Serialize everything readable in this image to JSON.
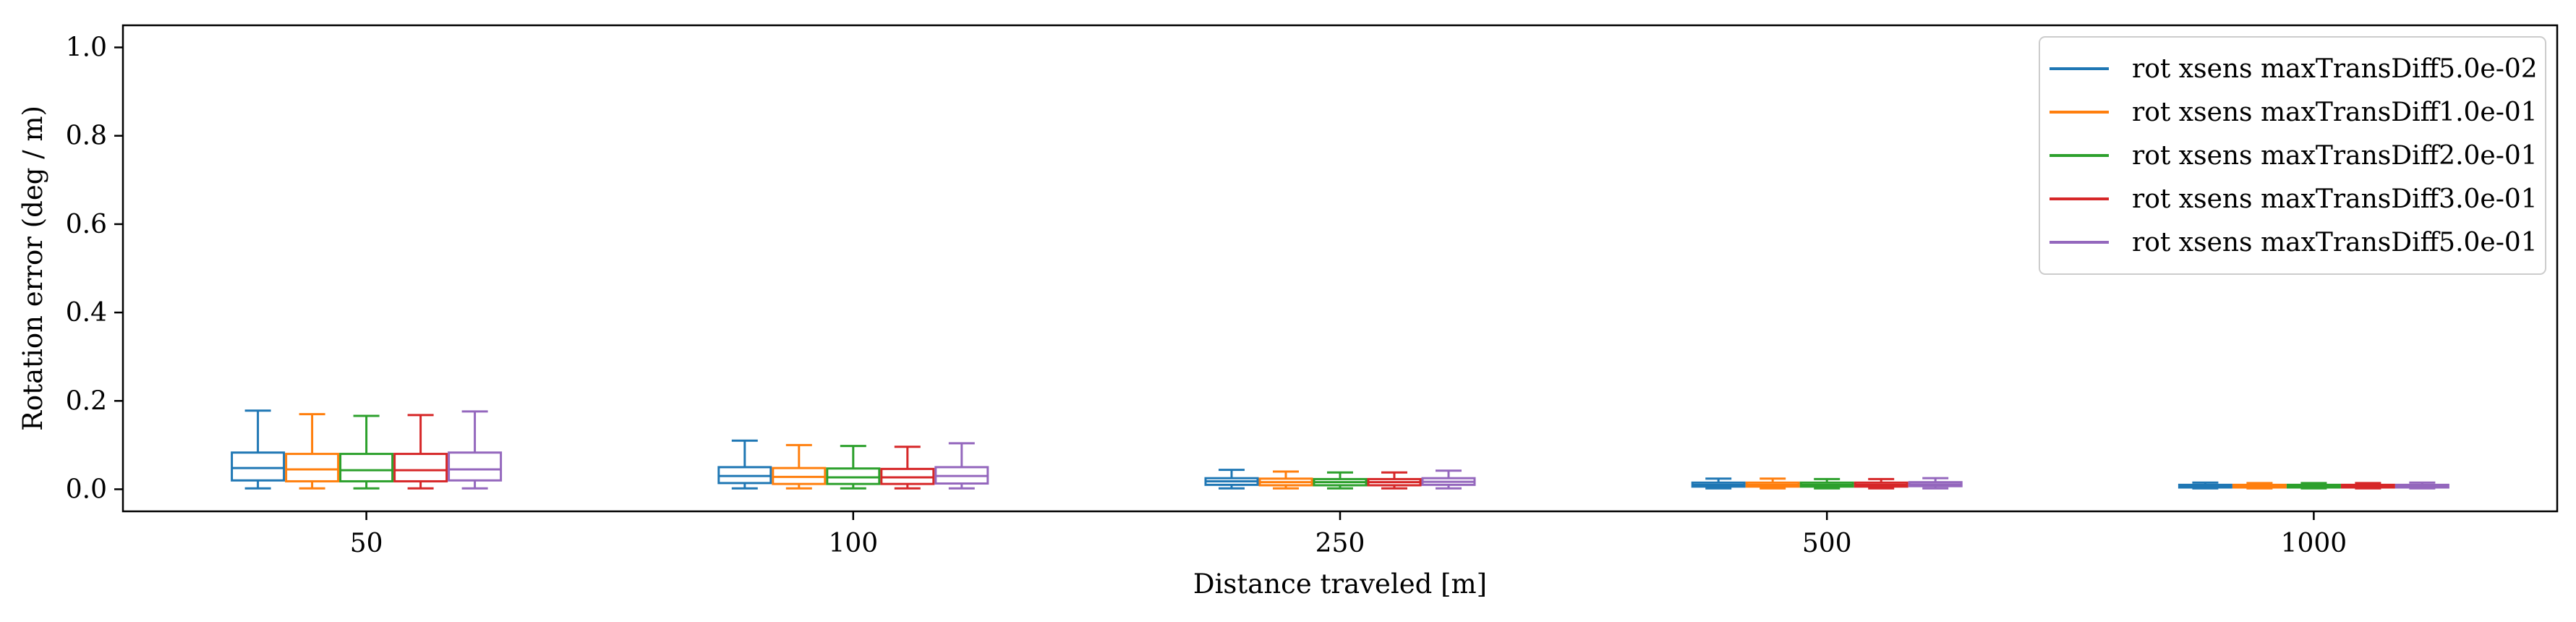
{
  "chart_data": {
    "type": "boxplot",
    "title": "",
    "xlabel": "Distance traveled [m]",
    "ylabel": "Rotation error (deg / m)",
    "ylim": [
      -0.05,
      1.05
    ],
    "yticks": [
      0.0,
      0.2,
      0.4,
      0.6,
      0.8,
      1.0
    ],
    "ytick_labels": [
      "0.0",
      "0.2",
      "0.4",
      "0.6",
      "0.8",
      "1.0"
    ],
    "categories": [
      "50",
      "100",
      "250",
      "500",
      "1000"
    ],
    "grid": false,
    "legend_position": "top-right",
    "series": [
      {
        "name": "rot xsens maxTransDiff5.0e-02",
        "color": "#1f77b4",
        "boxes": [
          {
            "whislo": 0.002,
            "q1": 0.02,
            "med": 0.048,
            "q3": 0.083,
            "whishi": 0.178
          },
          {
            "whislo": 0.002,
            "q1": 0.014,
            "med": 0.03,
            "q3": 0.05,
            "whishi": 0.11
          },
          {
            "whislo": 0.002,
            "q1": 0.01,
            "med": 0.018,
            "q3": 0.025,
            "whishi": 0.044
          },
          {
            "whislo": 0.002,
            "q1": 0.006,
            "med": 0.01,
            "q3": 0.015,
            "whishi": 0.024
          },
          {
            "whislo": 0.002,
            "q1": 0.004,
            "med": 0.007,
            "q3": 0.01,
            "whishi": 0.015
          }
        ]
      },
      {
        "name": "rot xsens maxTransDiff1.0e-01",
        "color": "#ff7f0e",
        "boxes": [
          {
            "whislo": 0.002,
            "q1": 0.018,
            "med": 0.045,
            "q3": 0.08,
            "whishi": 0.17
          },
          {
            "whislo": 0.002,
            "q1": 0.012,
            "med": 0.028,
            "q3": 0.048,
            "whishi": 0.1
          },
          {
            "whislo": 0.002,
            "q1": 0.009,
            "med": 0.016,
            "q3": 0.024,
            "whishi": 0.04
          },
          {
            "whislo": 0.002,
            "q1": 0.006,
            "med": 0.01,
            "q3": 0.015,
            "whishi": 0.024
          },
          {
            "whislo": 0.002,
            "q1": 0.004,
            "med": 0.007,
            "q3": 0.01,
            "whishi": 0.014
          }
        ]
      },
      {
        "name": "rot xsens maxTransDiff2.0e-01",
        "color": "#2ca02c",
        "boxes": [
          {
            "whislo": 0.002,
            "q1": 0.018,
            "med": 0.043,
            "q3": 0.08,
            "whishi": 0.166
          },
          {
            "whislo": 0.002,
            "q1": 0.012,
            "med": 0.027,
            "q3": 0.047,
            "whishi": 0.098
          },
          {
            "whislo": 0.002,
            "q1": 0.009,
            "med": 0.016,
            "q3": 0.023,
            "whishi": 0.038
          },
          {
            "whislo": 0.002,
            "q1": 0.006,
            "med": 0.01,
            "q3": 0.015,
            "whishi": 0.023
          },
          {
            "whislo": 0.002,
            "q1": 0.004,
            "med": 0.007,
            "q3": 0.01,
            "whishi": 0.014
          }
        ]
      },
      {
        "name": "rot xsens maxTransDiff3.0e-01",
        "color": "#d62728",
        "boxes": [
          {
            "whislo": 0.002,
            "q1": 0.018,
            "med": 0.043,
            "q3": 0.08,
            "whishi": 0.168
          },
          {
            "whislo": 0.002,
            "q1": 0.012,
            "med": 0.027,
            "q3": 0.046,
            "whishi": 0.096
          },
          {
            "whislo": 0.002,
            "q1": 0.009,
            "med": 0.016,
            "q3": 0.023,
            "whishi": 0.038
          },
          {
            "whislo": 0.002,
            "q1": 0.006,
            "med": 0.01,
            "q3": 0.015,
            "whishi": 0.023
          },
          {
            "whislo": 0.002,
            "q1": 0.004,
            "med": 0.007,
            "q3": 0.01,
            "whishi": 0.014
          }
        ]
      },
      {
        "name": "rot xsens maxTransDiff5.0e-01",
        "color": "#9467bd",
        "boxes": [
          {
            "whislo": 0.002,
            "q1": 0.02,
            "med": 0.045,
            "q3": 0.083,
            "whishi": 0.176
          },
          {
            "whislo": 0.002,
            "q1": 0.013,
            "med": 0.03,
            "q3": 0.05,
            "whishi": 0.104
          },
          {
            "whislo": 0.002,
            "q1": 0.01,
            "med": 0.017,
            "q3": 0.025,
            "whishi": 0.042
          },
          {
            "whislo": 0.002,
            "q1": 0.007,
            "med": 0.011,
            "q3": 0.016,
            "whishi": 0.025
          },
          {
            "whislo": 0.002,
            "q1": 0.004,
            "med": 0.007,
            "q3": 0.01,
            "whishi": 0.015
          }
        ]
      }
    ]
  }
}
